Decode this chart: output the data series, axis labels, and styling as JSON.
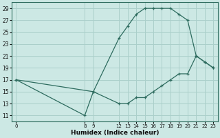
{
  "xlabel": "Humidex (Indice chaleur)",
  "bg_color": "#cce8e4",
  "grid_color": "#aacfca",
  "line_color": "#2d6b5e",
  "upper_x": [
    0,
    8,
    9,
    12,
    13,
    14,
    15,
    16,
    17,
    18,
    19,
    20,
    21,
    22,
    23
  ],
  "upper_y": [
    17,
    11,
    15,
    24,
    26,
    28,
    29,
    29,
    29,
    29,
    28,
    27,
    21,
    20,
    19
  ],
  "lower_x": [
    0,
    9,
    12,
    13,
    14,
    15,
    16,
    17,
    18,
    19,
    20,
    21,
    22,
    23
  ],
  "lower_y": [
    17,
    15,
    13,
    13,
    14,
    14,
    15,
    16,
    17,
    18,
    18,
    21,
    20,
    19
  ],
  "ylim": [
    10,
    30
  ],
  "xlim": [
    -0.5,
    23.5
  ],
  "yticks": [
    11,
    13,
    15,
    17,
    19,
    21,
    23,
    25,
    27,
    29
  ],
  "xticks": [
    0,
    8,
    9,
    12,
    13,
    14,
    15,
    16,
    17,
    18,
    19,
    20,
    21,
    22,
    23
  ],
  "marker_x_upper": [
    9,
    12,
    13,
    14,
    15,
    16,
    17,
    18,
    19,
    20,
    21,
    22,
    23
  ],
  "marker_y_upper": [
    15,
    24,
    26,
    28,
    29,
    29,
    29,
    29,
    28,
    27,
    21,
    20,
    19
  ],
  "marker_x_lower": [
    8,
    9,
    16,
    17,
    18,
    19,
    20
  ],
  "marker_y_lower": [
    11,
    15,
    15,
    16,
    17,
    18,
    18
  ]
}
